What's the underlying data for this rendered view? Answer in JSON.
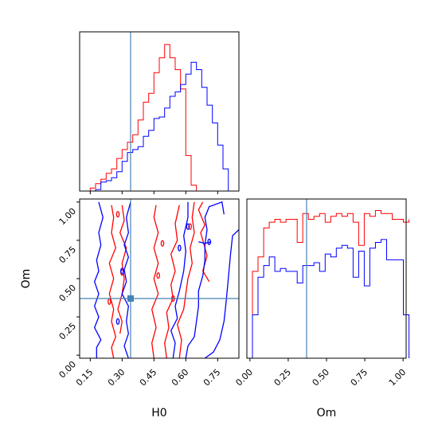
{
  "chart_data": {
    "type": "corner",
    "parameters": [
      "H0",
      "Om"
    ],
    "truth": {
      "H0": 0.34,
      "Om": 0.37
    },
    "truth_color": "#4682b4",
    "series_colors": {
      "red": "#ff0000",
      "blue": "#0000ff"
    },
    "axes": {
      "H0": {
        "label": "H0",
        "range": [
          0.1,
          0.85
        ],
        "ticks": [
          0.15,
          0.3,
          0.45,
          0.6,
          0.75
        ],
        "tick_labels": [
          "0.15",
          "0.30",
          "0.45",
          "0.60",
          "0.75"
        ]
      },
      "Om": {
        "label": "Om",
        "range": [
          -0.02,
          1.02
        ],
        "ticks": [
          0.0,
          0.25,
          0.5,
          0.75,
          1.0
        ],
        "tick_labels": [
          "0.00",
          "0.25",
          "0.50",
          "0.75",
          "1.00"
        ]
      }
    },
    "hist_H0": {
      "bin_edges": [
        0.1,
        0.125,
        0.15,
        0.175,
        0.2,
        0.225,
        0.25,
        0.275,
        0.3,
        0.325,
        0.35,
        0.375,
        0.4,
        0.425,
        0.45,
        0.475,
        0.5,
        0.525,
        0.55,
        0.575,
        0.6,
        0.625,
        0.65,
        0.675,
        0.7,
        0.725,
        0.75,
        0.775,
        0.8,
        0.825,
        0.85
      ],
      "red": [
        0,
        0,
        0.02,
        0.05,
        0.08,
        0.12,
        0.15,
        0.22,
        0.28,
        0.33,
        0.38,
        0.48,
        0.6,
        0.66,
        0.8,
        0.9,
        0.99,
        0.9,
        0.82,
        0.69,
        0.24,
        0.04,
        0,
        0,
        0,
        0,
        0,
        0,
        0,
        0
      ],
      "blue": [
        0,
        0,
        0,
        0.01,
        0.06,
        0.07,
        0.09,
        0.13,
        0.2,
        0.26,
        0.28,
        0.3,
        0.37,
        0.41,
        0.49,
        0.5,
        0.56,
        0.64,
        0.67,
        0.72,
        0.79,
        0.87,
        0.82,
        0.7,
        0.58,
        0.46,
        0.31,
        0.15,
        0,
        0
      ]
    },
    "hist_Om": {
      "bin_edges": [
        -0.02,
        0.0165,
        0.053,
        0.0895,
        0.126,
        0.1625,
        0.199,
        0.2355,
        0.272,
        0.3085,
        0.345,
        0.3815,
        0.418,
        0.4545,
        0.491,
        0.5275,
        0.564,
        0.6005,
        0.637,
        0.6735,
        0.71,
        0.7465,
        0.783,
        0.8195,
        0.856,
        0.8925,
        0.929,
        0.9655,
        1.002,
        1.0385
      ],
      "red": [
        0,
        0.3,
        0.35,
        0.45,
        0.47,
        0.48,
        0.47,
        0.48,
        0.48,
        0.4,
        0.5,
        0.48,
        0.49,
        0.5,
        0.47,
        0.49,
        0.5,
        0.49,
        0.5,
        0.47,
        0.39,
        0.5,
        0.49,
        0.51,
        0.5,
        0.5,
        0.48,
        0.48,
        0.47,
        0.48
      ],
      "blue": [
        0,
        0.15,
        0.28,
        0.32,
        0.35,
        0.3,
        0.31,
        0.3,
        0.3,
        0.26,
        0.32,
        0.32,
        0.33,
        0.3,
        0.36,
        0.35,
        0.38,
        0.39,
        0.38,
        0.28,
        0.37,
        0.25,
        0.38,
        0.4,
        0.41,
        0.34,
        0.34,
        0.34,
        0.15,
        0
      ]
    },
    "contours_2d": {
      "red": [
        [
          [
            0.26,
            -0.02
          ],
          [
            0.25,
            0.05
          ],
          [
            0.27,
            0.12
          ],
          [
            0.25,
            0.22
          ],
          [
            0.26,
            0.3
          ],
          [
            0.24,
            0.4
          ],
          [
            0.26,
            0.5
          ],
          [
            0.24,
            0.6
          ],
          [
            0.27,
            0.7
          ],
          [
            0.25,
            0.8
          ],
          [
            0.26,
            0.9
          ],
          [
            0.25,
            0.98
          ]
        ],
        [
          [
            0.3,
            0.98
          ],
          [
            0.31,
            0.88
          ],
          [
            0.29,
            0.8
          ],
          [
            0.32,
            0.7
          ],
          [
            0.3,
            0.6
          ],
          [
            0.31,
            0.5
          ],
          [
            0.3,
            0.4
          ],
          [
            0.28,
            0.3
          ],
          [
            0.3,
            0.22
          ],
          [
            0.29,
            0.14
          ]
        ],
        [
          [
            0.45,
            -0.02
          ],
          [
            0.44,
            0.08
          ],
          [
            0.46,
            0.18
          ],
          [
            0.44,
            0.3
          ],
          [
            0.47,
            0.4
          ],
          [
            0.45,
            0.5
          ],
          [
            0.47,
            0.6
          ],
          [
            0.45,
            0.7
          ],
          [
            0.47,
            0.8
          ],
          [
            0.45,
            0.9
          ],
          [
            0.46,
            0.98
          ]
        ],
        [
          [
            0.51,
            -0.02
          ],
          [
            0.5,
            0.08
          ],
          [
            0.52,
            0.18
          ],
          [
            0.51,
            0.28
          ],
          [
            0.54,
            0.37
          ],
          [
            0.53,
            0.46
          ],
          [
            0.55,
            0.55
          ],
          [
            0.53,
            0.66
          ],
          [
            0.56,
            0.75
          ],
          [
            0.55,
            0.86
          ],
          [
            0.57,
            0.98
          ]
        ],
        [
          [
            0.57,
            -0.02
          ],
          [
            0.58,
            0.1
          ],
          [
            0.56,
            0.2
          ],
          [
            0.59,
            0.3
          ],
          [
            0.6,
            0.4
          ],
          [
            0.61,
            0.5
          ],
          [
            0.63,
            0.6
          ],
          [
            0.62,
            0.7
          ],
          [
            0.64,
            0.8
          ],
          [
            0.63,
            0.9
          ],
          [
            0.64,
            1.0
          ]
        ],
        [
          [
            0.68,
            1.0
          ],
          [
            0.66,
            0.95
          ],
          [
            0.69,
            0.85
          ],
          [
            0.67,
            0.8
          ],
          [
            0.68,
            0.75
          ],
          [
            0.7,
            0.65
          ],
          [
            0.68,
            0.55
          ],
          [
            0.71,
            0.48
          ]
        ]
      ],
      "blue": [
        [
          [
            0.18,
            -0.02
          ],
          [
            0.18,
            0.05
          ],
          [
            0.2,
            0.1
          ],
          [
            0.17,
            0.18
          ],
          [
            0.19,
            0.25
          ],
          [
            0.17,
            0.32
          ],
          [
            0.19,
            0.4
          ],
          [
            0.17,
            0.48
          ],
          [
            0.19,
            0.55
          ],
          [
            0.18,
            0.62
          ],
          [
            0.2,
            0.72
          ],
          [
            0.19,
            0.8
          ],
          [
            0.21,
            0.9
          ],
          [
            0.19,
            1.0
          ]
        ],
        [
          [
            0.33,
            -0.02
          ],
          [
            0.31,
            0.06
          ],
          [
            0.33,
            0.14
          ],
          [
            0.32,
            0.22
          ],
          [
            0.33,
            0.32
          ],
          [
            0.3,
            0.4
          ],
          [
            0.32,
            0.48
          ],
          [
            0.31,
            0.56
          ],
          [
            0.33,
            0.64
          ],
          [
            0.31,
            0.72
          ],
          [
            0.33,
            0.8
          ],
          [
            0.32,
            0.9
          ],
          [
            0.34,
            1.0
          ]
        ],
        [
          [
            0.54,
            -0.02
          ],
          [
            0.55,
            0.08
          ],
          [
            0.53,
            0.16
          ],
          [
            0.56,
            0.24
          ],
          [
            0.55,
            0.32
          ],
          [
            0.57,
            0.42
          ],
          [
            0.59,
            0.55
          ],
          [
            0.6,
            0.68
          ],
          [
            0.59,
            0.78
          ],
          [
            0.61,
            0.9
          ],
          [
            0.61,
            1.0
          ]
        ],
        [
          [
            0.6,
            -0.02
          ],
          [
            0.61,
            0.06
          ],
          [
            0.64,
            0.12
          ],
          [
            0.65,
            0.22
          ],
          [
            0.66,
            0.32
          ],
          [
            0.66,
            0.42
          ],
          [
            0.68,
            0.52
          ],
          [
            0.69,
            0.62
          ],
          [
            0.69,
            0.72
          ],
          [
            0.7,
            0.82
          ],
          [
            0.69,
            0.9
          ],
          [
            0.71,
            0.97
          ],
          [
            0.77,
            1.0
          ],
          [
            0.78,
            0.92
          ]
        ],
        [
          [
            0.69,
            -0.02
          ],
          [
            0.73,
            0.02
          ],
          [
            0.76,
            0.1
          ],
          [
            0.78,
            0.22
          ],
          [
            0.79,
            0.35
          ],
          [
            0.8,
            0.5
          ],
          [
            0.81,
            0.65
          ],
          [
            0.82,
            0.78
          ],
          [
            0.85,
            0.82
          ]
        ],
        [
          [
            0.66,
            0.74
          ],
          [
            0.69,
            0.73
          ],
          [
            0.72,
            0.74
          ]
        ]
      ]
    },
    "small_islands": {
      "red": [
        [
          0.28,
          0.92
        ],
        [
          0.24,
          0.35
        ],
        [
          0.3,
          0.54
        ],
        [
          0.49,
          0.73
        ],
        [
          0.54,
          0.37
        ],
        [
          0.47,
          0.52
        ],
        [
          0.62,
          0.84
        ]
      ],
      "blue": [
        [
          0.28,
          0.22
        ],
        [
          0.3,
          0.55
        ],
        [
          0.57,
          0.7
        ],
        [
          0.61,
          0.84
        ],
        [
          0.71,
          0.74
        ]
      ]
    }
  }
}
